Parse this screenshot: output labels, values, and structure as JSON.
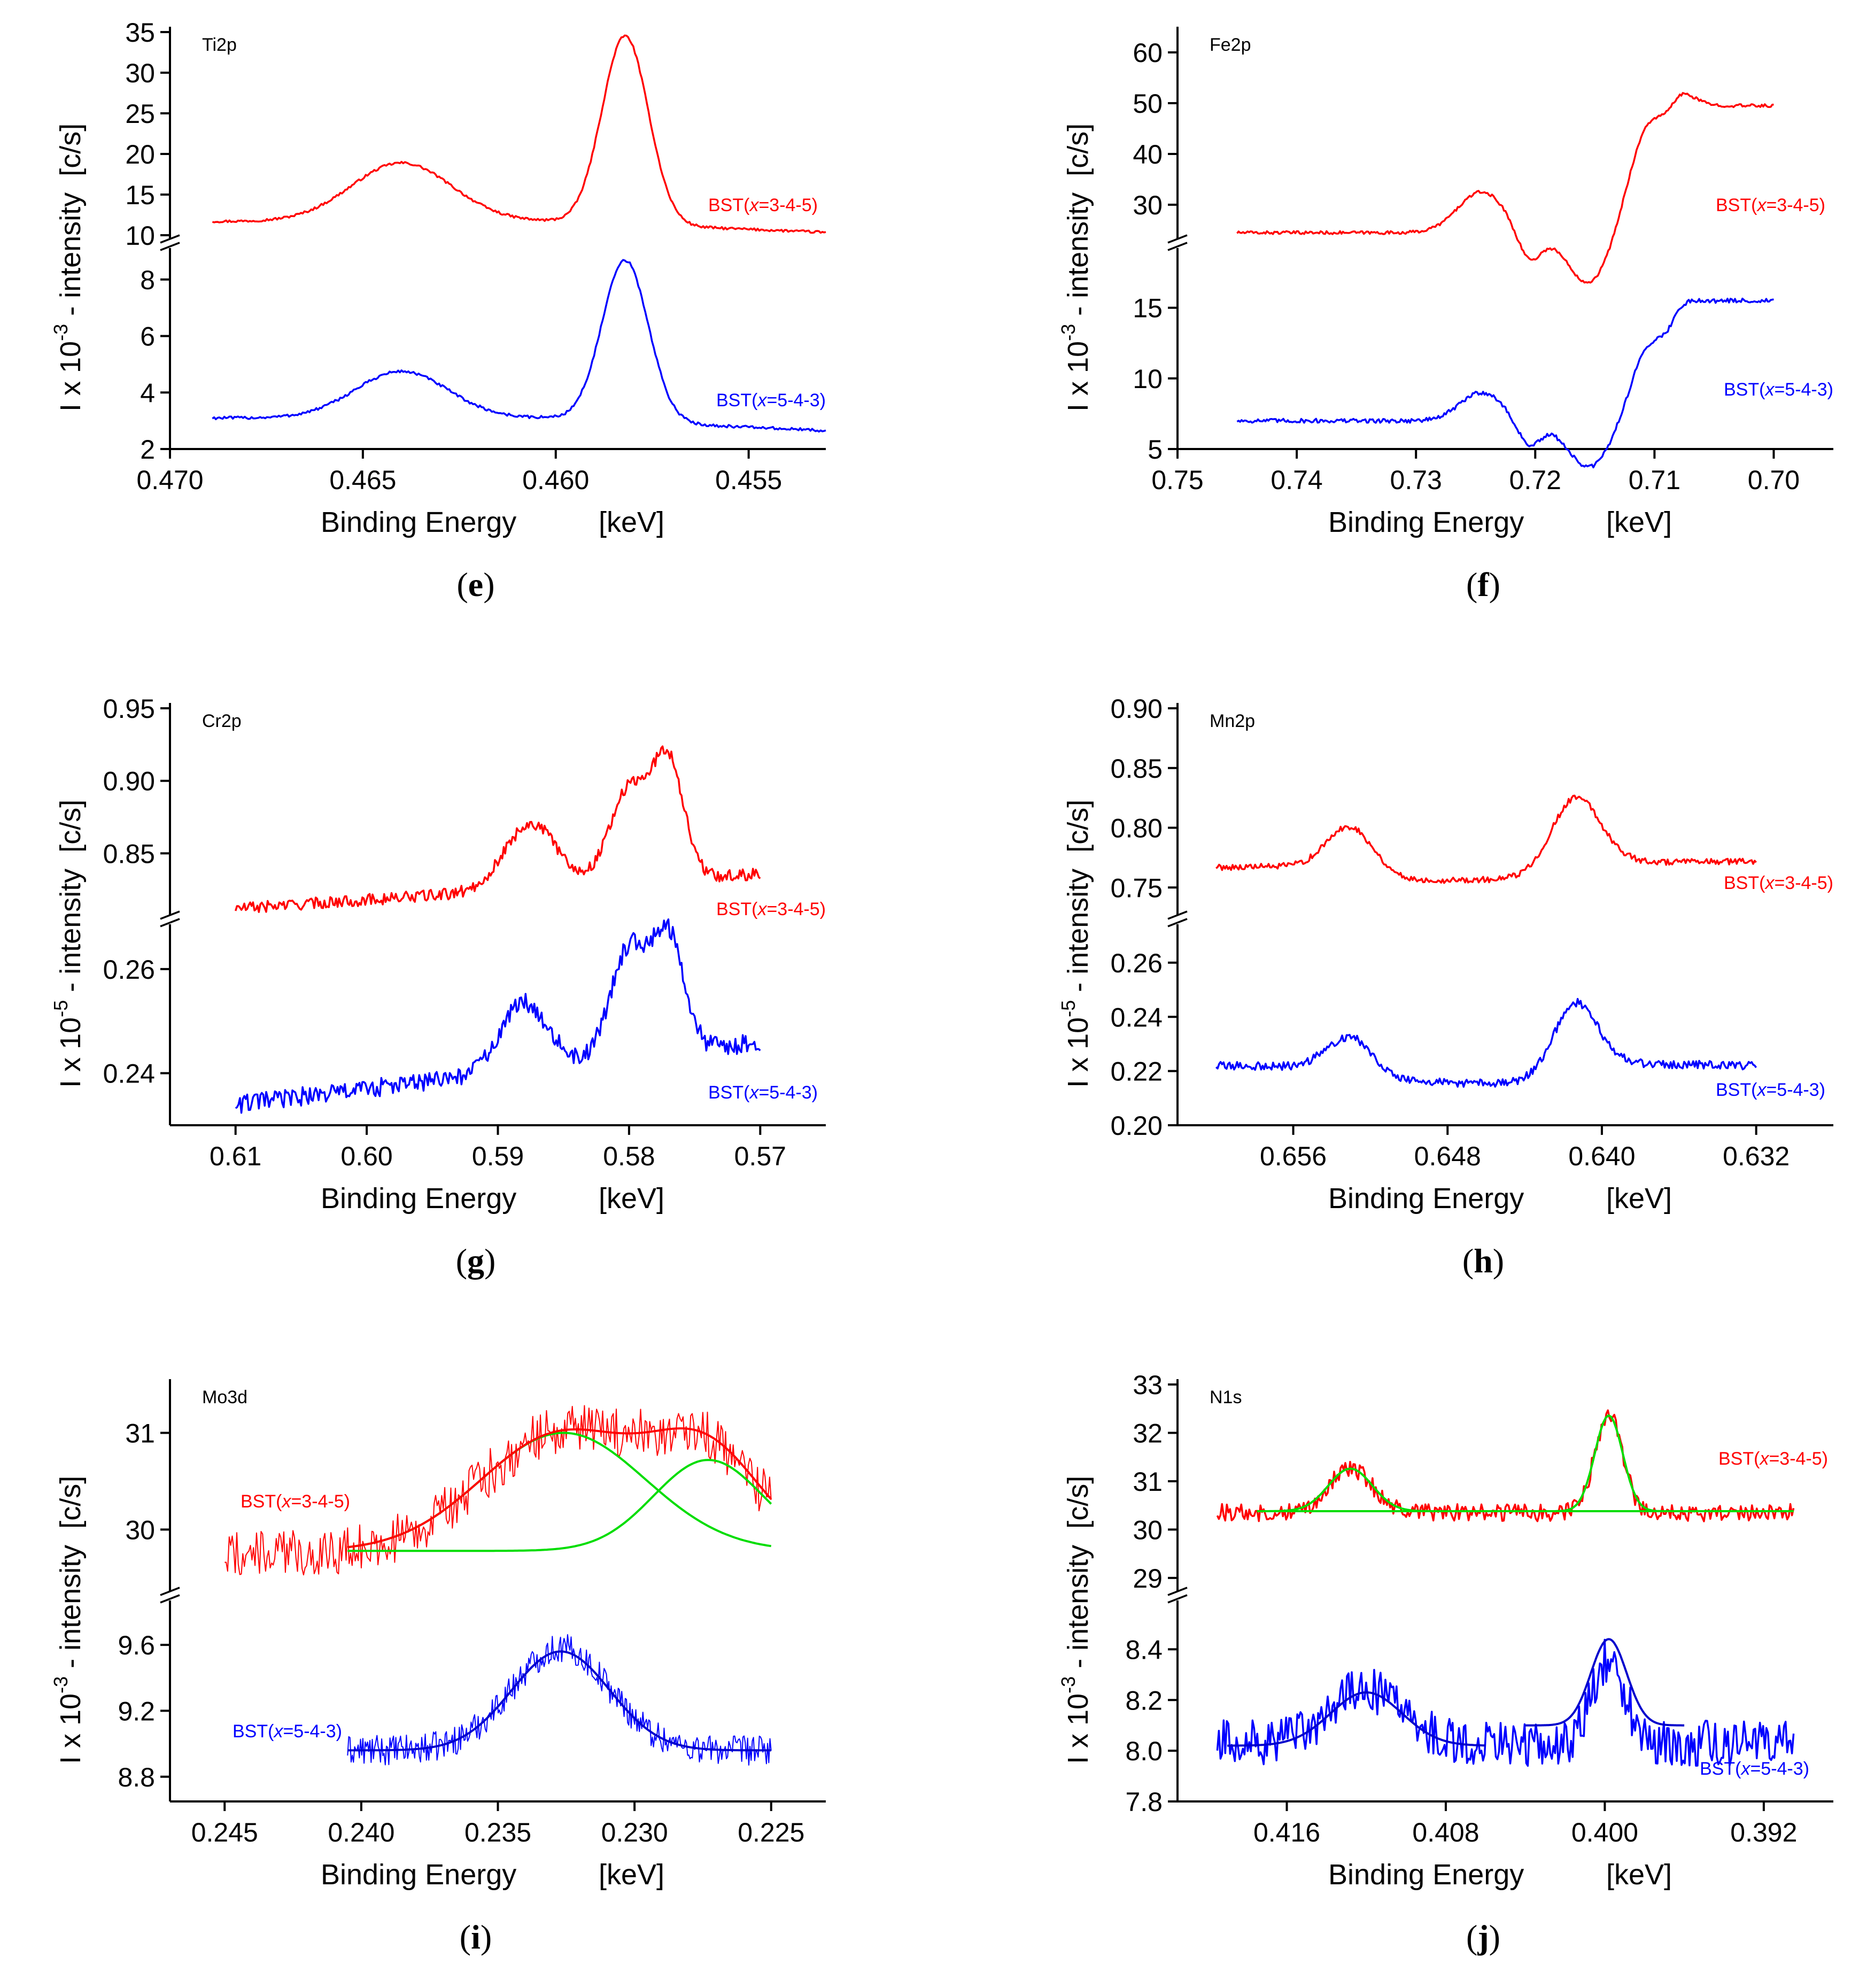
{
  "colors": {
    "red_series": "#ff0000",
    "blue_series": "#0000ff",
    "fit_green": "#00dd00",
    "fit_blue": "#0000cc",
    "axis": "#000000"
  },
  "common": {
    "xlabel_left": "Binding Energy",
    "xlabel_unit": "[keV]",
    "ylabel_prefix": "I x 10",
    "ylabel_suffix": " - intensity",
    "ylabel_unit": "[c/s]",
    "series_red_label": "BST(x=3-4-5)",
    "series_blue_label": "BST(x=5-4-3)"
  },
  "chart_data": [
    {
      "id": "e",
      "type": "line",
      "caption": "e",
      "element": "Ti2p",
      "exponent": "-3",
      "xlim": [
        0.47,
        0.453
      ],
      "xreverse": true,
      "xticks": [
        "0.470",
        "0.465",
        "0.460",
        "0.455"
      ],
      "upper": {
        "ylim": [
          10,
          35
        ],
        "yticks": [
          "10",
          "15",
          "20",
          "25",
          "30",
          "35"
        ]
      },
      "lower": {
        "ylim": [
          2,
          9
        ],
        "yticks": [
          "2",
          "4",
          "6",
          "8"
        ]
      },
      "series": [
        {
          "name": "BST(x=3-4-5)",
          "panel": "upper",
          "x_range": [
            0.4689,
            0.453
          ],
          "baseline": 11.7,
          "end_level": 10.2,
          "noise": 0.15,
          "peaks": [
            {
              "center": 0.464,
              "height": 7.2,
              "width": 0.0013
            },
            {
              "center": 0.4582,
              "height": 23.2,
              "width": 0.0006
            }
          ]
        },
        {
          "name": "BST(x=5-4-3)",
          "panel": "lower",
          "x_range": [
            0.4689,
            0.453
          ],
          "baseline": 3.1,
          "end_level": 2.6,
          "noise": 0.05,
          "peaks": [
            {
              "center": 0.464,
              "height": 1.65,
              "width": 0.0012
            },
            {
              "center": 0.4582,
              "height": 5.7,
              "width": 0.0006
            }
          ]
        }
      ]
    },
    {
      "id": "f",
      "type": "line",
      "caption": "f",
      "element": "Fe2p",
      "exponent": "-3",
      "xlim": [
        0.75,
        0.695
      ],
      "xreverse": true,
      "xticks": [
        "0.75",
        "0.74",
        "0.73",
        "0.72",
        "0.71",
        "0.70"
      ],
      "upper": {
        "ylim": [
          24,
          64
        ],
        "yticks": [
          "30",
          "40",
          "50",
          "60"
        ]
      },
      "lower": {
        "ylim": [
          5,
          19
        ],
        "yticks": [
          "5",
          "10",
          "15"
        ]
      },
      "series": [
        {
          "name": "BST(x=3-4-5)",
          "panel": "upper",
          "x_range": [
            0.745,
            0.7
          ],
          "baseline": 49.5,
          "end_level": 24.5,
          "edge": 0.7085,
          "noise": 0.3,
          "peaks": [
            {
              "center": 0.7245,
              "height": 8.0,
              "width": 0.002
            },
            {
              "center": 0.7103,
              "height": 21.0,
              "width": 0.0018
            }
          ],
          "dips": [
            {
              "center": 0.7205,
              "depth": 6.0,
              "width": 0.001
            },
            {
              "center": 0.7155,
              "depth": 10.0,
              "width": 0.0018
            }
          ]
        },
        {
          "name": "BST(x=5-4-3)",
          "panel": "lower",
          "x_range": [
            0.745,
            0.7
          ],
          "baseline": 15.5,
          "end_level": 7.0,
          "edge": 0.7085,
          "noise": 0.15,
          "peaks": [
            {
              "center": 0.7245,
              "height": 2.0,
              "width": 0.0018
            },
            {
              "center": 0.7103,
              "height": 5.2,
              "width": 0.0016
            }
          ],
          "dips": [
            {
              "center": 0.7205,
              "depth": 1.8,
              "width": 0.001
            },
            {
              "center": 0.7155,
              "depth": 3.3,
              "width": 0.0018
            }
          ]
        }
      ]
    },
    {
      "id": "g",
      "type": "line",
      "caption": "g",
      "element": "Cr2p",
      "exponent": "-5",
      "xlim": [
        0.615,
        0.565
      ],
      "xreverse": true,
      "xticks": [
        "0.61",
        "0.60",
        "0.59",
        "0.58",
        "0.57"
      ],
      "upper": {
        "ylim": [
          0.81,
          0.95
        ],
        "yticks": [
          "0.85",
          "0.90",
          "0.95"
        ]
      },
      "lower": {
        "ylim": [
          0.23,
          0.268
        ],
        "yticks": [
          "0.24",
          "0.26"
        ]
      },
      "series": [
        {
          "name": "BST(x=3-4-5)",
          "panel": "upper",
          "x_range": [
            0.61,
            0.57
          ],
          "baseline_start": 0.812,
          "baseline_end": 0.836,
          "noise": 0.004,
          "peaks": [
            {
              "center": 0.5875,
              "height": 0.045,
              "width": 0.002
            },
            {
              "center": 0.58,
              "height": 0.064,
              "width": 0.0015
            },
            {
              "center": 0.577,
              "height": 0.08,
              "width": 0.0012
            }
          ]
        },
        {
          "name": "BST(x=5-4-3)",
          "panel": "lower",
          "x_range": [
            0.61,
            0.57
          ],
          "baseline_start": 0.234,
          "baseline_end": 0.246,
          "noise": 0.0018,
          "peaks": [
            {
              "center": 0.588,
              "height": 0.013,
              "width": 0.0018
            },
            {
              "center": 0.58,
              "height": 0.021,
              "width": 0.0014
            },
            {
              "center": 0.577,
              "height": 0.022,
              "width": 0.0012
            }
          ]
        }
      ]
    },
    {
      "id": "h",
      "type": "line",
      "caption": "h",
      "element": "Mn2p",
      "exponent": "-5",
      "xlim": [
        0.662,
        0.628
      ],
      "xreverse": true,
      "xticks": [
        "0.656",
        "0.648",
        "0.640",
        "0.632"
      ],
      "upper": {
        "ylim": [
          0.73,
          0.9
        ],
        "yticks": [
          "0.75",
          "0.80",
          "0.85",
          "0.90"
        ]
      },
      "lower": {
        "ylim": [
          0.2,
          0.273
        ],
        "yticks": [
          "0.20",
          "0.22",
          "0.24",
          "0.26"
        ]
      },
      "series": [
        {
          "name": "BST(x=3-4-5)",
          "panel": "upper",
          "x_range": [
            0.66,
            0.632
          ],
          "baseline_start": 0.767,
          "baseline_end": 0.772,
          "noise": 0.0025,
          "steps": [
            {
              "center": 0.6525,
              "height": 0.013,
              "width": 0.0008
            },
            {
              "center": 0.6395,
              "height": -0.013,
              "width": 0.0005
            }
          ],
          "peaks": [
            {
              "center": 0.653,
              "height": 0.037,
              "width": 0.0012
            },
            {
              "center": 0.6413,
              "height": 0.068,
              "width": 0.0013
            }
          ]
        },
        {
          "name": "BST(x=5-4-3)",
          "panel": "lower",
          "x_range": [
            0.66,
            0.632
          ],
          "baseline_start": 0.225,
          "baseline_end": 0.222,
          "noise": 0.0015,
          "steps": [
            {
              "center": 0.6525,
              "height": 0.005,
              "width": 0.0008
            },
            {
              "center": 0.6395,
              "height": -0.008,
              "width": 0.0005
            }
          ],
          "peaks": [
            {
              "center": 0.653,
              "height": 0.013,
              "width": 0.0012
            },
            {
              "center": 0.6413,
              "height": 0.03,
              "width": 0.0012
            }
          ]
        }
      ]
    },
    {
      "id": "i",
      "type": "line",
      "caption": "i",
      "element": "Mo3d",
      "exponent": "-3",
      "xlim": [
        0.247,
        0.223
      ],
      "xreverse": true,
      "xticks": [
        "0.245",
        "0.240",
        "0.235",
        "0.230",
        "0.225"
      ],
      "upper": {
        "ylim": [
          29.4,
          31.5
        ],
        "yticks": [
          "30",
          "31"
        ]
      },
      "lower": {
        "ylim": [
          8.65,
          9.85
        ],
        "yticks": [
          "8.8",
          "9.2",
          "9.6"
        ]
      },
      "series": [
        {
          "name": "BST(x=3-4-5)",
          "panel": "upper",
          "thin": true,
          "x_range": [
            0.245,
            0.225
          ],
          "baseline": 29.75,
          "noise": 0.25,
          "peaks": [
            {
              "center": 0.2326,
              "height": 1.25,
              "width": 0.003
            },
            {
              "center": 0.2273,
              "height": 0.95,
              "width": 0.002
            }
          ]
        },
        {
          "name": "BST(x=5-4-3)",
          "panel": "lower",
          "thin": true,
          "x_range": [
            0.2405,
            0.225
          ],
          "baseline": 8.96,
          "noise": 0.09,
          "peaks": [
            {
              "center": 0.2327,
              "height": 0.62,
              "width": 0.0018
            }
          ]
        }
      ],
      "fits": [
        {
          "panel": "upper",
          "color": "fit_green",
          "x_range": [
            0.2405,
            0.225
          ],
          "baseline": 29.78,
          "peaks": [
            {
              "center": 0.2326,
              "height": 1.22,
              "width": 0.003
            }
          ]
        },
        {
          "panel": "upper",
          "color": "fit_green",
          "x_range": [
            0.2405,
            0.225
          ],
          "baseline": 29.78,
          "peaks": [
            {
              "center": 0.2273,
              "height": 0.94,
              "width": 0.002
            }
          ]
        },
        {
          "panel": "upper",
          "color": "red_series",
          "x_range": [
            0.2405,
            0.225
          ],
          "baseline": 29.78,
          "peaks": [
            {
              "center": 0.2326,
              "height": 1.22,
              "width": 0.003
            },
            {
              "center": 0.2273,
              "height": 0.94,
              "width": 0.002
            }
          ]
        },
        {
          "panel": "lower",
          "color": "fit_blue",
          "x_range": [
            0.2405,
            0.225
          ],
          "baseline": 8.96,
          "peaks": [
            {
              "center": 0.2327,
              "height": 0.6,
              "width": 0.0018
            }
          ]
        }
      ]
    },
    {
      "id": "j",
      "type": "line",
      "caption": "j",
      "element": "N1s",
      "exponent": "-3",
      "xlim": [
        0.4215,
        0.3885
      ],
      "xreverse": true,
      "xticks": [
        "0.416",
        "0.408",
        "0.400",
        "0.392"
      ],
      "upper": {
        "ylim": [
          28.8,
          33
        ],
        "yticks": [
          "29",
          "30",
          "31",
          "32",
          "33"
        ]
      },
      "lower": {
        "ylim": [
          7.8,
          8.58
        ],
        "yticks": [
          "7.8",
          "8.0",
          "8.2",
          "8.4"
        ]
      },
      "series": [
        {
          "name": "BST(x=3-4-5)",
          "panel": "upper",
          "x_range": [
            0.4195,
            0.3905
          ],
          "baseline": 30.35,
          "noise": 0.18,
          "peaks": [
            {
              "center": 0.4128,
              "height": 0.9,
              "width": 0.0011
            },
            {
              "center": 0.3998,
              "height": 2.0,
              "width": 0.0007
            }
          ]
        },
        {
          "name": "BST(x=5-4-3)",
          "panel": "lower",
          "x_range": [
            0.4195,
            0.3905
          ],
          "baseline": 8.03,
          "noise": 0.09,
          "peaks": [
            {
              "center": 0.412,
              "height": 0.21,
              "width": 0.0018
            },
            {
              "center": 0.3998,
              "height": 0.33,
              "width": 0.0008
            }
          ]
        }
      ],
      "fits": [
        {
          "panel": "upper",
          "color": "fit_green",
          "x_range": [
            0.4175,
            0.3905
          ],
          "baseline": 30.38,
          "peaks": [
            {
              "center": 0.4128,
              "height": 0.88,
              "width": 0.0011
            },
            {
              "center": 0.3998,
              "height": 1.98,
              "width": 0.0007
            }
          ],
          "flat_line": true
        },
        {
          "panel": "lower",
          "color": "fit_blue",
          "x_range": [
            0.419,
            0.406
          ],
          "baseline": 8.02,
          "peaks": [
            {
              "center": 0.412,
              "height": 0.21,
              "width": 0.0018
            }
          ]
        },
        {
          "panel": "lower",
          "color": "fit_blue",
          "x_range": [
            0.404,
            0.396
          ],
          "baseline": 8.1,
          "peaks": [
            {
              "center": 0.3998,
              "height": 0.34,
              "width": 0.0009
            }
          ]
        }
      ]
    }
  ]
}
